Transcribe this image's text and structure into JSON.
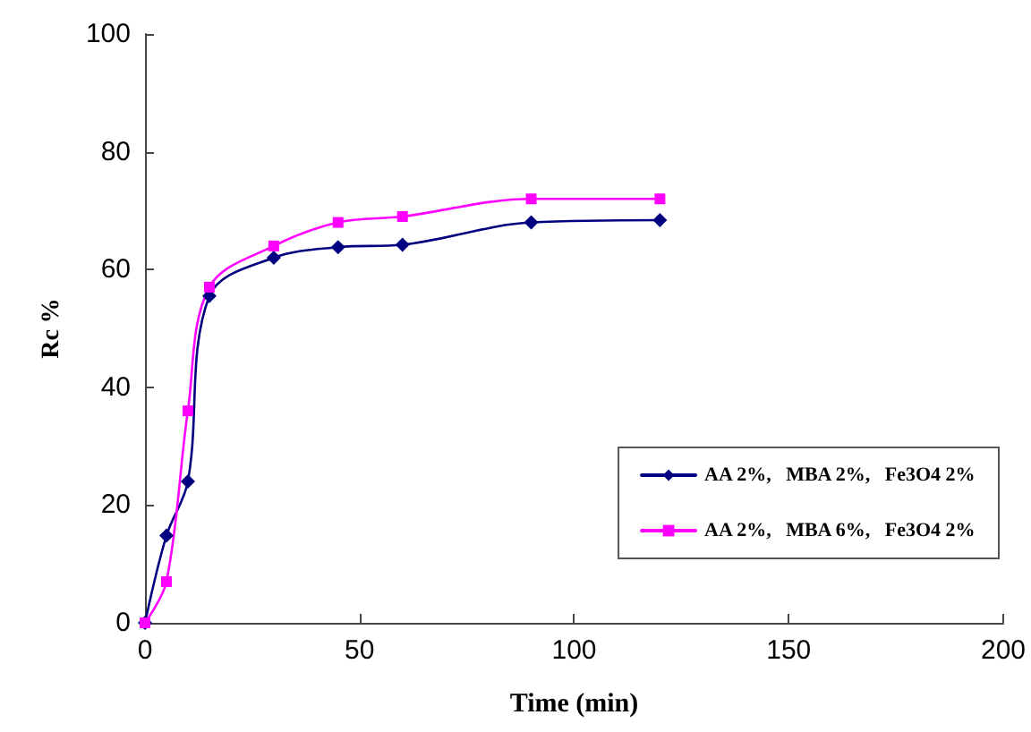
{
  "chart_data": {
    "type": "line",
    "xlabel": "Time (min)",
    "ylabel": "Rc %",
    "xlim": [
      0,
      200
    ],
    "xticks": [
      0,
      50,
      100,
      150,
      200
    ],
    "ylim": [
      0,
      100
    ],
    "yticks": [
      0,
      20,
      40,
      60,
      80,
      100
    ],
    "grid": false,
    "legend": "right",
    "line_style": "solid",
    "series": [
      {
        "name": "AA 2%,   MBA 2%,   Fe3O4 2%",
        "color": "#000080",
        "marker": "diamond",
        "x": [
          0,
          5,
          10,
          15,
          30,
          45,
          60,
          90,
          120
        ],
        "values": [
          0,
          14.8,
          24,
          55.5,
          62,
          63.8,
          64.2,
          68,
          68.4
        ]
      },
      {
        "name": "AA 2%,   MBA 6%,   Fe3O4 2%",
        "color": "#ff00ff",
        "marker": "square",
        "x": [
          0,
          5,
          10,
          15,
          30,
          45,
          60,
          90,
          120
        ],
        "values": [
          0,
          7,
          36,
          57,
          64,
          68,
          69,
          72,
          72
        ]
      }
    ]
  }
}
